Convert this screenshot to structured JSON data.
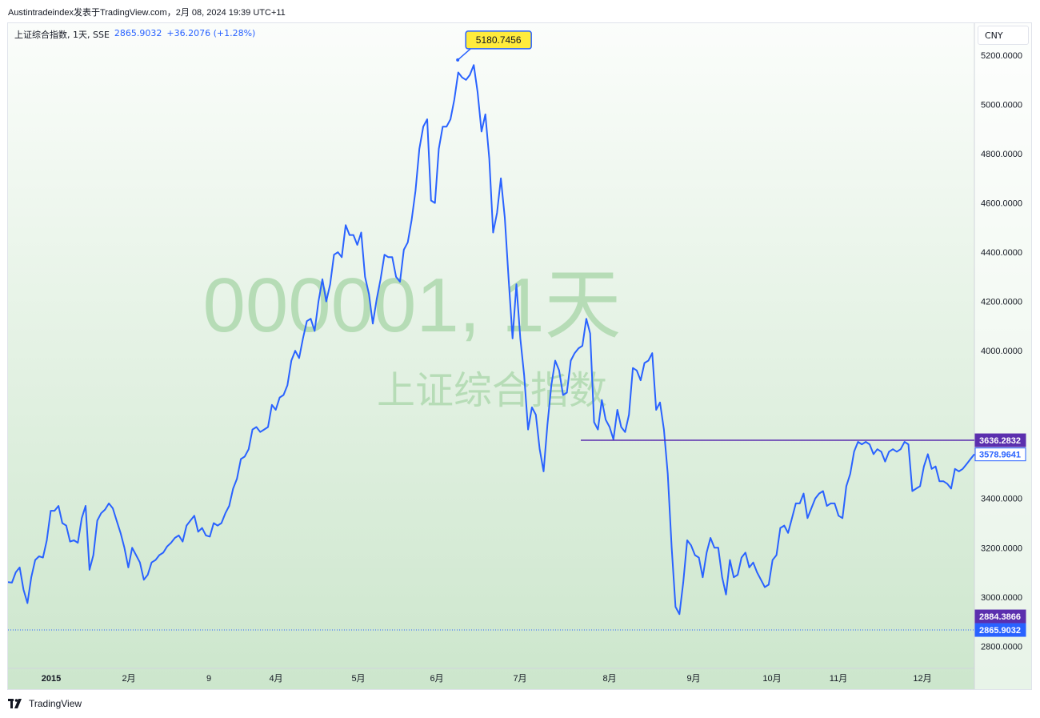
{
  "header": {
    "text": "Austintradeindex发表于TradingView.com，2月 08, 2024 19:39 UTC+11"
  },
  "legend": {
    "symbol": "上证综合指数, 1天, SSE",
    "last": "2865.9032",
    "change": "+36.2076 (+1.28%)"
  },
  "currency_button": "CNY",
  "watermark": {
    "line1": "000001, 1天",
    "line2": "上证综合指数"
  },
  "footer": {
    "brand": "TradingView",
    "logo_icon": "tradingview-logo-icon"
  },
  "colors": {
    "line": "#2962ff",
    "hline": "#5b2fae",
    "bg_top": "#f6fbf6",
    "bg_bottom": "#cfe8cf",
    "callout": "#ffeb3b",
    "watermark": "#b6dcb6"
  },
  "chart_data": {
    "type": "line",
    "series": [
      {
        "values": [
          3060,
          3058,
          3100,
          3120,
          3030,
          2975,
          3080,
          3150,
          3165,
          3160,
          3230,
          3350,
          3350,
          3370,
          3300,
          3290,
          3225,
          3230,
          3220,
          3320,
          3370,
          3110,
          3170,
          3310,
          3340,
          3355,
          3380,
          3360,
          3310,
          3260,
          3200,
          3120,
          3200,
          3170,
          3140,
          3070,
          3090,
          3140,
          3150,
          3170,
          3180,
          3205,
          3220,
          3240,
          3250,
          3225,
          3290,
          3310,
          3330,
          3265,
          3280,
          3250,
          3245,
          3300,
          3290,
          3300,
          3340,
          3370,
          3440,
          3480,
          3560,
          3570,
          3600,
          3680,
          3690,
          3670,
          3680,
          3690,
          3780,
          3760,
          3810,
          3820,
          3860,
          3960,
          4000,
          3970,
          4050,
          4120,
          4130,
          4080,
          4200,
          4290,
          4200,
          4270,
          4390,
          4400,
          4380,
          4510,
          4470,
          4470,
          4430,
          4480,
          4300,
          4230,
          4110,
          4210,
          4290,
          4390,
          4380,
          4380,
          4300,
          4280,
          4410,
          4440,
          4530,
          4650,
          4820,
          4910,
          4940,
          4610,
          4600,
          4820,
          4910,
          4910,
          4940,
          5020,
          5130,
          5110,
          5100,
          5120,
          5160,
          5050,
          4890,
          4960,
          4780,
          4480,
          4560,
          4700,
          4540,
          4290,
          4050,
          4270,
          4050,
          3900,
          3680,
          3770,
          3740,
          3600,
          3510,
          3700,
          3860,
          3960,
          3920,
          3820,
          3830,
          3960,
          3990,
          4010,
          4020,
          4130,
          4070,
          3710,
          3680,
          3800,
          3720,
          3690,
          3640,
          3760,
          3690,
          3670,
          3740,
          3930,
          3920,
          3880,
          3950,
          3960,
          3990,
          3760,
          3790,
          3680,
          3500,
          3200,
          2960,
          2930,
          3060,
          3230,
          3210,
          3170,
          3160,
          3080,
          3180,
          3240,
          3200,
          3200,
          3080,
          3010,
          3150,
          3080,
          3090,
          3160,
          3180,
          3120,
          3140,
          3100,
          3070,
          3040,
          3050,
          3150,
          3170,
          3280,
          3290,
          3260,
          3320,
          3380,
          3380,
          3420,
          3320,
          3360,
          3400,
          3420,
          3430,
          3370,
          3380,
          3380,
          3330,
          3320,
          3450,
          3500,
          3590,
          3630,
          3620,
          3630,
          3620,
          3580,
          3600,
          3590,
          3550,
          3590,
          3600,
          3590,
          3600,
          3630,
          3620,
          3430,
          3440,
          3450,
          3530,
          3580,
          3520,
          3530,
          3470,
          3470,
          3460,
          3440,
          3520,
          3510,
          3520,
          3540,
          3560,
          3580
        ]
      }
    ],
    "x_ticks": [
      "2015",
      "2月",
      "9",
      "4月",
      "5月",
      "6月",
      "7月",
      "8月",
      "9月",
      "10月",
      "11月",
      "12月"
    ],
    "y_ticks": [
      "2800.0000",
      "3000.0000",
      "3200.0000",
      "3400.0000",
      "4000.0000",
      "4200.0000",
      "4400.0000",
      "4600.0000",
      "4800.0000",
      "5000.0000",
      "5200.0000"
    ],
    "ylim": [
      2710,
      5330
    ],
    "annotations": {
      "high": "5180.7456",
      "hline": "3636.2832",
      "last": "3578.9641",
      "low_tag": "2884.3866",
      "current": "2865.9032"
    }
  }
}
